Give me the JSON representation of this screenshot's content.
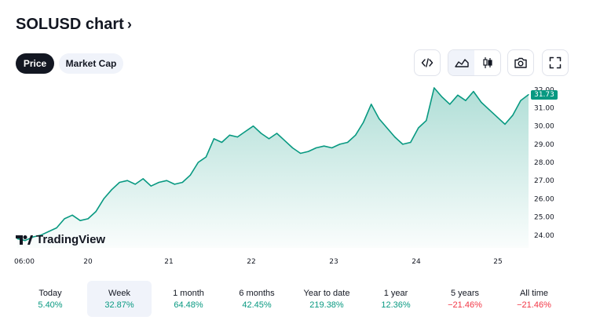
{
  "header": {
    "title": "SOLUSD chart",
    "chevron": "›"
  },
  "tabs": [
    {
      "label": "Price",
      "active": true
    },
    {
      "label": "Market Cap",
      "active": false
    }
  ],
  "toolbar": {
    "icons": [
      "code-embed-icon",
      "area-chart-icon",
      "candles-chart-icon",
      "camera-icon",
      "fullscreen-icon"
    ],
    "selected": "area-chart-icon"
  },
  "colors": {
    "accent": "#089981",
    "negative": "#f23645",
    "dark": "#131722",
    "selected_bg": "#f0f3fa"
  },
  "logo": {
    "text": "TradingView"
  },
  "chart_data": {
    "type": "area",
    "series_color": "#089981",
    "ylim": [
      23.3,
      32.1
    ],
    "y_ticks": [
      "24.00",
      "25.00",
      "26.00",
      "27.00",
      "28.00",
      "29.00",
      "30.00",
      "31.00",
      "32.00"
    ],
    "x_ticks": [
      "06:00",
      "20",
      "21",
      "22",
      "23",
      "24",
      "25"
    ],
    "last_price": "31.73",
    "x": [
      0,
      1,
      2,
      3,
      4,
      5,
      6,
      7,
      8,
      9,
      10,
      11,
      12,
      13,
      14,
      15,
      16,
      17,
      18,
      19,
      20,
      21,
      22,
      23,
      24,
      25,
      26,
      27,
      28,
      29,
      30,
      31,
      32,
      33,
      34,
      35,
      36,
      37,
      38,
      39,
      40,
      41,
      42,
      43,
      44,
      45,
      46,
      47,
      48,
      49,
      50,
      51,
      52,
      53,
      54,
      55,
      56,
      57,
      58,
      59,
      60,
      61,
      62,
      63,
      64,
      65
    ],
    "values": [
      23.8,
      23.7,
      23.9,
      24.0,
      24.2,
      24.4,
      24.9,
      25.1,
      24.8,
      24.9,
      25.3,
      26.0,
      26.5,
      26.9,
      27.0,
      26.8,
      27.1,
      26.7,
      26.9,
      27.0,
      26.8,
      26.9,
      27.3,
      28.0,
      28.3,
      29.3,
      29.1,
      29.5,
      29.4,
      29.7,
      30.0,
      29.6,
      29.3,
      29.6,
      29.2,
      28.8,
      28.5,
      28.6,
      28.8,
      28.9,
      28.8,
      29.0,
      29.1,
      29.5,
      30.2,
      31.2,
      30.4,
      29.9,
      29.4,
      29.0,
      29.1,
      29.9,
      30.3,
      32.1,
      31.6,
      31.2,
      31.7,
      31.4,
      31.9,
      31.3,
      30.9,
      30.5,
      30.1,
      30.6,
      31.4,
      31.73
    ]
  },
  "periods": [
    {
      "label": "Today",
      "value": "5.40%",
      "sign": "pos",
      "selected": false
    },
    {
      "label": "Week",
      "value": "32.87%",
      "sign": "pos",
      "selected": true
    },
    {
      "label": "1 month",
      "value": "64.48%",
      "sign": "pos",
      "selected": false
    },
    {
      "label": "6 months",
      "value": "42.45%",
      "sign": "pos",
      "selected": false
    },
    {
      "label": "Year to date",
      "value": "219.38%",
      "sign": "pos",
      "selected": false
    },
    {
      "label": "1 year",
      "value": "12.36%",
      "sign": "pos",
      "selected": false
    },
    {
      "label": "5 years",
      "value": "−21.46%",
      "sign": "neg",
      "selected": false
    },
    {
      "label": "All time",
      "value": "−21.46%",
      "sign": "neg",
      "selected": false
    }
  ]
}
